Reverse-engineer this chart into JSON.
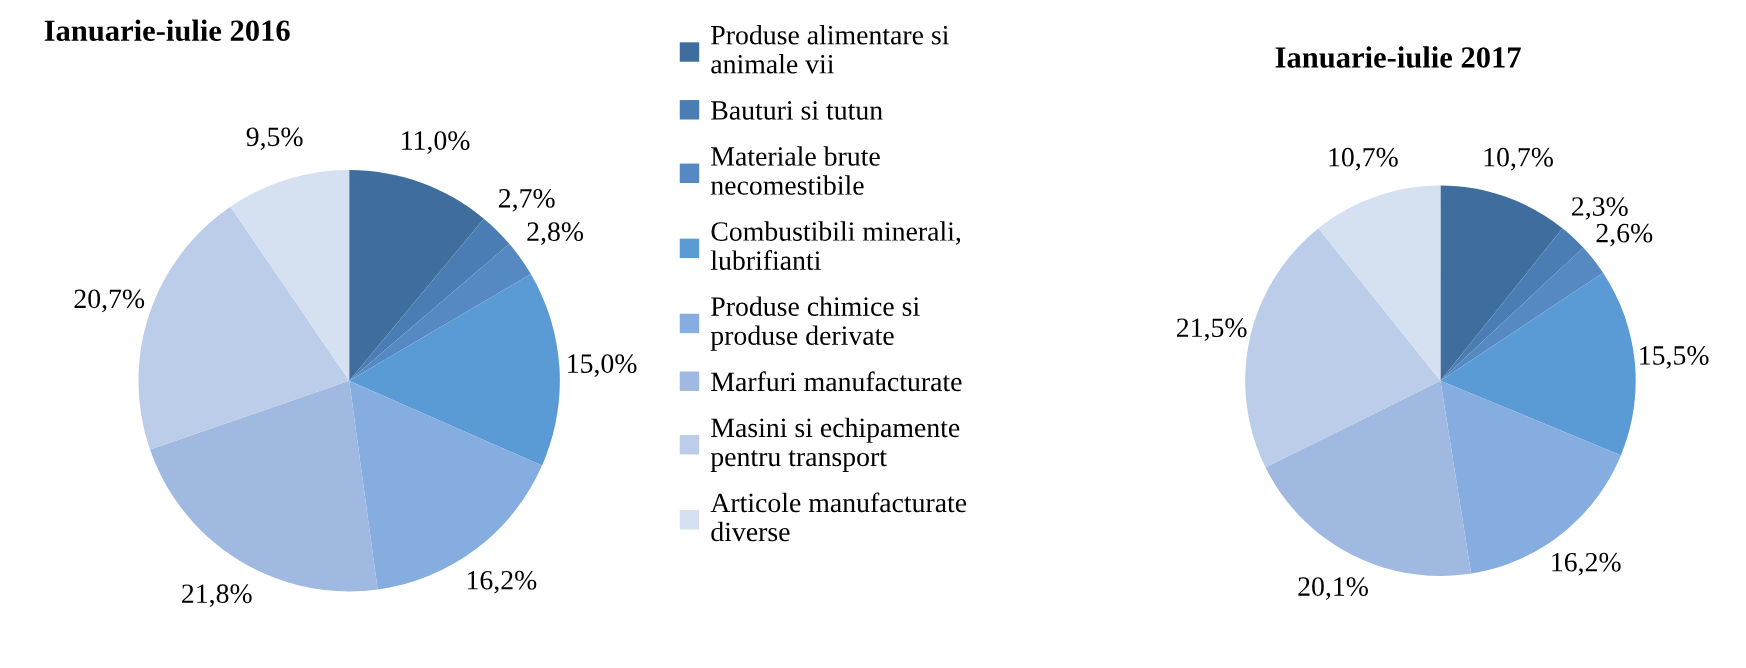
{
  "chart_data": [
    {
      "type": "pie",
      "title": "Ianuarie-iulie 2016",
      "legend": "right",
      "categories": [
        "Produse alimentare si animale vii",
        "Bauturi si tutun",
        "Materiale brute necomestibile",
        "Combustibili minerali, lubrifianti",
        "Produse chimice si produse derivate",
        "Marfuri manufacturate",
        "Masini si echipamente pentru transport",
        "Articole manufacturate diverse"
      ],
      "values": [
        11.0,
        2.7,
        2.8,
        15.0,
        16.2,
        21.8,
        20.7,
        9.5
      ],
      "value_labels": [
        "11,0%",
        "2,7%",
        "2,8%",
        "15,0%",
        "16,2%",
        "21,8%",
        "20,7%",
        "9,5%"
      ],
      "colors": [
        "#3f6d9e",
        "#4a7db3",
        "#5689c2",
        "#5b9bd5",
        "#86addf",
        "#9fb9e0",
        "#bccde9",
        "#d5e0f0"
      ]
    },
    {
      "type": "pie",
      "title": "Ianuarie-iulie 2017",
      "values": [
        10.7,
        2.3,
        2.6,
        15.5,
        16.2,
        20.1,
        21.5,
        10.7
      ],
      "value_labels": [
        "10,7%",
        "2,3%",
        "2,6%",
        "15,5%",
        "16,2%",
        "20,1%",
        "21,5%",
        "10,7%"
      ],
      "colors": [
        "#3f6d9e",
        "#4a7db3",
        "#5689c2",
        "#5b9bd5",
        "#86addf",
        "#9fb9e0",
        "#bccde9",
        "#d5e0f0"
      ]
    }
  ]
}
